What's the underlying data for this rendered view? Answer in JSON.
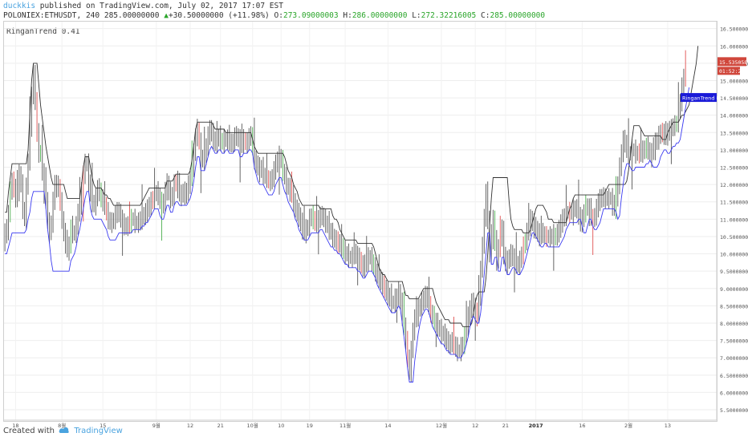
{
  "header": {
    "user": "duckkis",
    "published": "published on TradingView.com, July 02, 2017 17:07 EST",
    "symbol": "POLONIEX:ETHUSDT, 240",
    "last": "285.00000000",
    "change": "+30.50000000 (+11.98%)",
    "o_label": "O:",
    "o_value": "273.09000003",
    "h_label": "H:",
    "h_value": "286.00000000",
    "l_label": "L:",
    "l_value": "272.32216005",
    "c_label": "C:",
    "c_value": "285.00000000"
  },
  "indicator_label": "RinganTrend 0.41",
  "price_tags": {
    "last_price": "15.53505813",
    "countdown": "01:52:27",
    "indicator": "RinganTrend 0.41"
  },
  "footer": {
    "created_with": "Created with",
    "brand": "TradingView"
  },
  "colors": {
    "up": "#4caf50",
    "down": "#e05050",
    "candle": "#555555",
    "trend_upper": "#333333",
    "trend_lower": "#3a3af0",
    "tag_red": "#d0463b",
    "tag_blue": "#1a1ad8"
  },
  "chart_data": {
    "type": "line",
    "series_kind": "candlestick with trend bands",
    "y_ticks": [
      "16.50000000",
      "16.00000000",
      "15.50000000",
      "15.00000000",
      "14.50000000",
      "14.00000000",
      "13.50000000",
      "13.00000000",
      "12.50000000",
      "12.00000000",
      "11.50000000",
      "11.00000000",
      "10.50000000",
      "10.00000000",
      "9.50000000",
      "9.00000000",
      "8.50000000",
      "8.00000000",
      "7.50000000",
      "7.00000000",
      "6.50000000",
      "6.00000000",
      "5.50000000"
    ],
    "y_tick_values": [
      16.5,
      16,
      15.5,
      15,
      14.5,
      14,
      13.5,
      13,
      12.5,
      12,
      11.5,
      11,
      10.5,
      10,
      9.5,
      9,
      8.5,
      8,
      7.5,
      7,
      6.5,
      6,
      5.5
    ],
    "ylim": [
      5.2,
      16.7
    ],
    "x_ticks": [
      "18",
      "8월",
      "15",
      "9월",
      "12",
      "21",
      "10월",
      "10",
      "19",
      "11월",
      "14",
      "12월",
      "12",
      "21",
      "2017",
      "16",
      "2월",
      "13"
    ],
    "x_tick_index": [
      6,
      32,
      55,
      85,
      104,
      121,
      139,
      155,
      171,
      191,
      215,
      245,
      264,
      281,
      298,
      324,
      350,
      372
    ],
    "n_bars": 400,
    "price": [
      10.7,
      10.6,
      11.2,
      11.8,
      12.1,
      11.9,
      11.6,
      11.8,
      12.3,
      12.0,
      11.3,
      11.0,
      11.9,
      12.7,
      13.6,
      14.6,
      15.2,
      14.4,
      13.5,
      12.9,
      12.9,
      12.4,
      12.2,
      11.6,
      10.9,
      10.6,
      10.9,
      11.5,
      11.9,
      12.0,
      11.9,
      11.5,
      11.0,
      10.6,
      10.3,
      10.1,
      10.2,
      10.8,
      10.6,
      10.6,
      10.8,
      11.2,
      11.4,
      11.8,
      12.3,
      12.6,
      12.6,
      12.1,
      11.7,
      11.5,
      11.4,
      11.6,
      11.9,
      11.8,
      11.6,
      11.5,
      11.4,
      11.2,
      11.0,
      10.9,
      10.9,
      11.0,
      11.1,
      11.2,
      11.2,
      11.0,
      10.9,
      10.8,
      10.8,
      10.8,
      10.9,
      11.0,
      11.0,
      10.9,
      10.9,
      10.9,
      11.0,
      11.1,
      11.1,
      11.2,
      11.3,
      11.4,
      11.5,
      11.6,
      11.7,
      11.8,
      11.7,
      11.5,
      11.4,
      11.5,
      11.8,
      12.0,
      11.8,
      11.6,
      11.7,
      12.0,
      12.1,
      11.9,
      11.7,
      11.7,
      11.8,
      11.7,
      11.8,
      12.0,
      12.2,
      12.5,
      12.9,
      13.4,
      13.6,
      13.2,
      12.8,
      12.7,
      12.8,
      13.1,
      13.4,
      13.6,
      13.5,
      13.3,
      13.2,
      13.3,
      13.4,
      13.3,
      13.2,
      13.3,
      13.3,
      13.3,
      13.2,
      13.2,
      13.2,
      13.4,
      13.4,
      13.3,
      13.1,
      13.2,
      13.3,
      13.2,
      13.2,
      13.4,
      13.4,
      13.1,
      12.7,
      12.6,
      12.5,
      12.4,
      12.5,
      12.3,
      12.2,
      12.2,
      12.1,
      12.1,
      12.2,
      12.4,
      12.6,
      12.7,
      12.8,
      12.7,
      12.4,
      12.2,
      12.0,
      11.9,
      11.8,
      11.7,
      11.5,
      11.3,
      11.2,
      11.1,
      10.9,
      10.7,
      10.6,
      10.7,
      10.8,
      11.0,
      11.1,
      11.0,
      10.9,
      10.9,
      11.0,
      11.1,
      11.1,
      11.0,
      10.9,
      10.8,
      10.7,
      10.6,
      10.5,
      10.4,
      10.4,
      10.3,
      10.3,
      10.2,
      10.1,
      10.0,
      10.0,
      9.9,
      9.9,
      9.9,
      10.0,
      10.0,
      9.9,
      9.8,
      9.7,
      9.6,
      9.7,
      9.8,
      9.9,
      9.9,
      9.8,
      9.6,
      9.5,
      9.4,
      9.3,
      9.2,
      9.1,
      9.0,
      8.9,
      8.8,
      8.7,
      8.6,
      8.6,
      8.7,
      8.8,
      8.9,
      8.6,
      8.2,
      7.9,
      7.5,
      7.0,
      6.6,
      7.2,
      7.8,
      8.1,
      8.2,
      8.4,
      8.5,
      8.6,
      8.7,
      8.8,
      8.7,
      8.5,
      8.3,
      8.2,
      8.1,
      8.0,
      7.9,
      7.8,
      7.7,
      7.7,
      7.6,
      7.5,
      7.4,
      7.4,
      7.5,
      7.4,
      7.3,
      7.2,
      7.2,
      7.3,
      7.4,
      7.6,
      7.9,
      8.2,
      8.4,
      8.6,
      8.5,
      8.3,
      8.2,
      8.8,
      9.5,
      10.3,
      11.0,
      11.8,
      11.0,
      10.0,
      10.4,
      11.0,
      10.4,
      9.8,
      10.2,
      10.8,
      10.4,
      10.0,
      9.7,
      9.8,
      9.9,
      10.0,
      9.9,
      9.8,
      9.7,
      9.7,
      9.8,
      10.0,
      10.2,
      10.4,
      10.6,
      10.8,
      11.0,
      10.9,
      10.8,
      10.7,
      10.6,
      10.5,
      10.6,
      10.6,
      10.5,
      10.5,
      10.5,
      10.5,
      10.5,
      10.5,
      10.5,
      10.6,
      10.7,
      10.9,
      11.0,
      11.1,
      11.2,
      11.2,
      11.2,
      11.2,
      11.3,
      11.3,
      11.3,
      11.1,
      10.9,
      11.0,
      11.2,
      11.4,
      11.3,
      11.1,
      11.0,
      11.0,
      11.1,
      11.3,
      11.5,
      11.6,
      11.6,
      11.6,
      11.6,
      11.6,
      11.6,
      11.6,
      11.5,
      11.3,
      11.6,
      12.0,
      12.5,
      12.9,
      13.3,
      13.2,
      13.0,
      12.9,
      12.9,
      13.0,
      13.0,
      12.9,
      12.9,
      12.9,
      12.9,
      13.0,
      13.0,
      13.1,
      13.0,
      12.9,
      12.9,
      13.0,
      13.2,
      13.3,
      13.4,
      13.5,
      13.5,
      13.4,
      13.4,
      13.5,
      13.6,
      13.6,
      13.7,
      13.7,
      13.8,
      14.1,
      14.4,
      14.8,
      15.1,
      15.6
    ],
    "trend_upper": [
      11.2,
      11.2,
      11.8,
      12.2,
      12.6,
      12.6,
      12.6,
      12.6,
      12.6,
      12.6,
      12.6,
      12.6,
      12.6,
      13.0,
      14.0,
      15.0,
      15.5,
      15.5,
      15.5,
      14.9,
      14.3,
      13.9,
      13.5,
      13.1,
      12.8,
      12.5,
      12.2,
      12.0,
      12.0,
      12.0,
      12.0,
      12.0,
      12.0,
      12.0,
      11.8,
      11.6,
      11.6,
      11.6,
      11.6,
      11.6,
      11.6,
      11.6,
      11.6,
      12.0,
      12.5,
      12.8,
      12.8,
      12.8,
      12.5,
      12.2,
      12.0,
      11.9,
      11.9,
      11.9,
      11.9,
      11.8,
      11.7,
      11.7,
      11.6,
      11.6,
      11.5,
      11.4,
      11.4,
      11.4,
      11.4,
      11.4,
      11.4,
      11.4,
      11.4,
      11.4,
      11.4,
      11.4,
      11.4,
      11.4,
      11.4,
      11.4,
      11.4,
      11.5,
      11.6,
      11.7,
      11.8,
      11.9,
      11.9,
      11.9,
      11.9,
      11.9,
      11.9,
      11.9,
      11.9,
      11.9,
      11.9,
      12.1,
      12.1,
      12.1,
      12.1,
      12.2,
      12.3,
      12.3,
      12.3,
      12.3,
      12.3,
      12.3,
      12.3,
      12.3,
      12.4,
      12.7,
      13.1,
      13.6,
      13.8,
      13.8,
      13.8,
      13.8,
      13.8,
      13.8,
      13.8,
      13.8,
      13.8,
      13.7,
      13.6,
      13.6,
      13.6,
      13.6,
      13.6,
      13.6,
      13.5,
      13.5,
      13.5,
      13.5,
      13.5,
      13.5,
      13.5,
      13.5,
      13.5,
      13.5,
      13.5,
      13.5,
      13.5,
      13.5,
      13.5,
      13.3,
      13.1,
      13.0,
      12.9,
      12.9,
      12.9,
      12.9,
      12.9,
      12.9,
      12.9,
      12.9,
      12.9,
      12.9,
      12.9,
      12.9,
      12.9,
      12.9,
      12.9,
      12.8,
      12.6,
      12.4,
      12.3,
      12.2,
      12.0,
      11.9,
      11.8,
      11.6,
      11.5,
      11.4,
      11.4,
      11.4,
      11.4,
      11.4,
      11.4,
      11.4,
      11.4,
      11.4,
      11.4,
      11.3,
      11.3,
      11.3,
      11.3,
      11.3,
      11.3,
      11.3,
      11.1,
      11.0,
      11.0,
      10.9,
      10.7,
      10.6,
      10.5,
      10.4,
      10.4,
      10.4,
      10.4,
      10.4,
      10.4,
      10.4,
      10.3,
      10.3,
      10.3,
      10.3,
      10.3,
      10.3,
      10.3,
      10.3,
      10.3,
      10.2,
      10.0,
      9.8,
      9.6,
      9.5,
      9.4,
      9.4,
      9.3,
      9.2,
      9.2,
      9.2,
      9.2,
      9.2,
      9.2,
      9.2,
      9.2,
      9.2,
      9.0,
      8.8,
      8.8,
      8.7,
      8.7,
      8.7,
      8.7,
      8.7,
      8.7,
      8.8,
      8.9,
      9.0,
      9.0,
      9.0,
      9.0,
      9.0,
      9.0,
      8.8,
      8.6,
      8.5,
      8.4,
      8.3,
      8.2,
      8.1,
      8.1,
      8.1,
      8.0,
      8.0,
      8.0,
      8.0,
      8.0,
      8.0,
      8.0,
      7.9,
      7.9,
      7.9,
      7.9,
      7.9,
      8.0,
      8.3,
      8.6,
      8.8,
      8.9,
      8.9,
      8.9,
      8.9,
      9.3,
      10.0,
      10.8,
      11.6,
      12.2,
      12.2,
      12.2,
      12.2,
      12.2,
      12.2,
      12.2,
      12.2,
      12.2,
      11.5,
      11.0,
      10.8,
      10.7,
      10.7,
      10.7,
      10.7,
      10.7,
      10.6,
      10.6,
      10.6,
      10.6,
      10.7,
      10.9,
      11.1,
      11.3,
      11.4,
      11.4,
      11.4,
      11.4,
      11.3,
      11.2,
      11.0,
      11.0,
      11.0,
      10.9,
      10.9,
      10.9,
      10.9,
      10.9,
      10.9,
      10.9,
      10.9,
      11.1,
      11.3,
      11.4,
      11.6,
      11.7,
      11.7,
      11.7,
      11.7,
      11.7,
      11.7,
      11.7,
      11.7,
      11.7,
      11.7,
      11.7,
      11.7,
      11.7,
      11.7,
      11.7,
      11.7,
      11.7,
      11.8,
      11.9,
      12.0,
      12.0,
      12.0,
      12.0,
      12.0,
      12.0,
      12.0,
      12.0,
      12.0,
      12.0,
      12.1,
      12.4,
      12.8,
      13.3,
      13.7,
      13.7,
      13.7,
      13.7,
      13.6,
      13.5,
      13.4,
      13.4,
      13.4,
      13.4,
      13.4,
      13.4,
      13.4,
      13.4,
      13.4,
      13.4,
      13.3,
      13.3,
      13.3,
      13.5,
      13.6,
      13.7,
      13.8,
      13.8,
      13.8,
      13.8,
      13.9,
      14.0,
      14.0,
      14.1,
      14.2,
      14.3,
      14.6,
      14.9,
      15.2,
      15.5,
      16.0
    ],
    "trend_lower": [
      10.0,
      10.0,
      10.2,
      10.4,
      10.6,
      10.6,
      10.6,
      10.6,
      10.6,
      10.6,
      10.6,
      10.6,
      10.7,
      11.0,
      11.2,
      11.6,
      11.8,
      11.8,
      11.8,
      11.8,
      11.8,
      11.8,
      11.8,
      11.3,
      10.7,
      10.3,
      9.8,
      9.5,
      9.5,
      9.5,
      9.5,
      9.5,
      9.5,
      9.5,
      9.5,
      9.5,
      9.5,
      9.8,
      9.9,
      10.0,
      10.2,
      10.5,
      10.7,
      11.0,
      11.3,
      11.6,
      11.8,
      11.8,
      11.3,
      11.1,
      11.0,
      11.0,
      11.0,
      11.0,
      11.0,
      10.9,
      10.8,
      10.7,
      10.5,
      10.4,
      10.4,
      10.4,
      10.4,
      10.5,
      10.6,
      10.6,
      10.6,
      10.6,
      10.6,
      10.6,
      10.6,
      10.6,
      10.7,
      10.7,
      10.7,
      10.7,
      10.7,
      10.8,
      10.8,
      10.9,
      10.9,
      11.0,
      11.1,
      11.2,
      11.3,
      11.3,
      11.3,
      11.1,
      11.0,
      11.0,
      11.2,
      11.4,
      11.4,
      11.2,
      11.2,
      11.4,
      11.5,
      11.5,
      11.4,
      11.4,
      11.4,
      11.4,
      11.4,
      11.5,
      11.6,
      11.8,
      12.1,
      12.5,
      12.8,
      12.8,
      12.4,
      12.4,
      12.4,
      12.6,
      12.8,
      13.0,
      13.1,
      13.0,
      12.9,
      12.9,
      13.0,
      13.0,
      12.9,
      12.9,
      13.0,
      13.0,
      12.9,
      12.9,
      12.9,
      13.0,
      13.0,
      13.0,
      12.8,
      12.8,
      12.9,
      12.9,
      12.9,
      13.0,
      13.0,
      12.9,
      12.5,
      12.3,
      12.1,
      12.0,
      12.0,
      12.0,
      11.9,
      11.8,
      11.7,
      11.7,
      11.7,
      11.8,
      12.0,
      12.1,
      12.2,
      12.2,
      12.0,
      11.8,
      11.7,
      11.5,
      11.4,
      11.3,
      11.2,
      11.0,
      10.9,
      10.7,
      10.6,
      10.5,
      10.4,
      10.4,
      10.4,
      10.5,
      10.6,
      10.6,
      10.6,
      10.6,
      10.6,
      10.7,
      10.7,
      10.6,
      10.5,
      10.4,
      10.3,
      10.2,
      10.2,
      10.1,
      10.1,
      10.0,
      10.0,
      9.9,
      9.8,
      9.7,
      9.7,
      9.6,
      9.6,
      9.6,
      9.6,
      9.6,
      9.5,
      9.5,
      9.4,
      9.3,
      9.3,
      9.4,
      9.5,
      9.5,
      9.5,
      9.4,
      9.3,
      9.1,
      9.0,
      8.9,
      8.8,
      8.7,
      8.6,
      8.5,
      8.4,
      8.3,
      8.3,
      8.3,
      8.4,
      8.5,
      8.4,
      8.0,
      7.6,
      7.2,
      6.7,
      6.3,
      6.3,
      6.3,
      6.9,
      7.3,
      7.7,
      8.0,
      8.2,
      8.3,
      8.4,
      8.4,
      8.3,
      8.1,
      7.9,
      7.8,
      7.7,
      7.6,
      7.5,
      7.4,
      7.4,
      7.3,
      7.2,
      7.2,
      7.1,
      7.1,
      7.1,
      7.1,
      7.0,
      7.0,
      7.0,
      7.1,
      7.2,
      7.4,
      7.6,
      7.9,
      8.1,
      8.2,
      8.1,
      8.0,
      8.0,
      8.3,
      8.8,
      9.4,
      10.0,
      10.6,
      10.6,
      9.7,
      9.7,
      9.9,
      9.9,
      9.5,
      9.5,
      9.9,
      9.9,
      9.6,
      9.4,
      9.4,
      9.5,
      9.6,
      9.6,
      9.5,
      9.4,
      9.4,
      9.5,
      9.6,
      9.8,
      10.0,
      10.2,
      10.4,
      10.6,
      10.6,
      10.5,
      10.4,
      10.3,
      10.2,
      10.2,
      10.3,
      10.3,
      10.2,
      10.2,
      10.2,
      10.2,
      10.2,
      10.2,
      10.2,
      10.3,
      10.4,
      10.5,
      10.7,
      10.8,
      10.9,
      10.9,
      10.9,
      10.9,
      10.9,
      11.0,
      11.0,
      10.8,
      10.6,
      10.6,
      10.8,
      11.0,
      11.0,
      10.8,
      10.7,
      10.7,
      10.8,
      10.9,
      11.1,
      11.3,
      11.3,
      11.3,
      11.3,
      11.3,
      11.3,
      11.3,
      11.2,
      11.0,
      11.1,
      11.6,
      12.0,
      12.4,
      12.6,
      12.6,
      12.5,
      12.4,
      12.4,
      12.5,
      12.5,
      12.5,
      12.5,
      12.5,
      12.5,
      12.6,
      12.6,
      12.7,
      12.6,
      12.5,
      12.5,
      12.5,
      12.6,
      12.8,
      12.9,
      13.0,
      13.0,
      12.9,
      12.9,
      13.0,
      13.1,
      13.1,
      13.2,
      13.2,
      13.3,
      13.6,
      13.9,
      14.2,
      14.5,
      14.8
    ]
  }
}
